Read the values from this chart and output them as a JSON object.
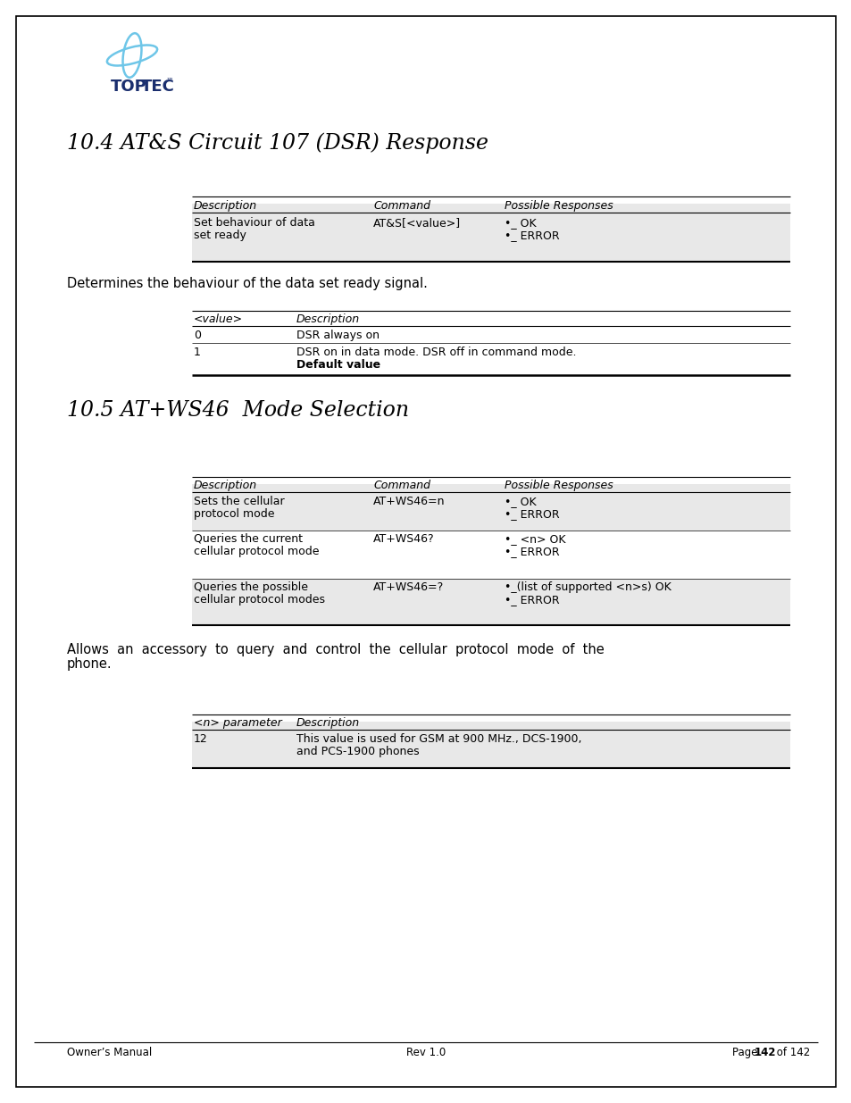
{
  "page_border_color": "#000000",
  "page_bg": "#ffffff",
  "section1_title": "10.4 AT&S Circuit 107 (DSR) Response",
  "section2_title": "10.5 AT+WS46  Mode Selection",
  "table1_headers": [
    "Description",
    "Command",
    "Possible Responses"
  ],
  "desc_text": "Determines the behaviour of the data set ready signal.",
  "table2_headers": [
    "<value>",
    "Description"
  ],
  "table3_headers": [
    "Description",
    "Command",
    "Possible Responses"
  ],
  "desc_text2_line1": "Allows  an  accessory  to  query  and  control  the  cellular  protocol  mode  of  the",
  "desc_text2_line2": "phone.",
  "table4_headers": [
    "<n> parameter",
    "Description"
  ],
  "footer_left": "Owner’s Manual",
  "footer_center": "Rev 1.0",
  "bullet": "•",
  "row_bg": "#e8e8e8",
  "row_bg2": "#f0f0f0"
}
